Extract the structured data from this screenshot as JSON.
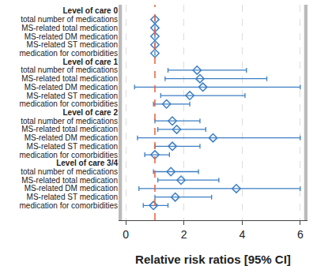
{
  "chart_data": {
    "type": "forest",
    "x_label": "Relative risk ratios [95% CI]",
    "xlim": [
      -0.25,
      6.25
    ],
    "xticks": [
      0,
      2,
      4,
      6
    ],
    "reference_line": 1,
    "color": "#3d7fc4",
    "marker": "diamond-open",
    "grid": true,
    "groups": [
      {
        "label": "Level of care 0",
        "items": [
          {
            "name": "total number of medications",
            "value": 1,
            "ci_lower": null,
            "ci_upper": null
          },
          {
            "name": "MS-related total medication",
            "value": 1,
            "ci_lower": null,
            "ci_upper": null
          },
          {
            "name": "MS-related DM medication",
            "value": 1,
            "ci_lower": null,
            "ci_upper": null
          },
          {
            "name": "MS-related ST medication",
            "value": 1,
            "ci_lower": null,
            "ci_upper": null
          },
          {
            "name": "medication for comorbidities",
            "value": 1,
            "ci_lower": null,
            "ci_upper": null
          }
        ]
      },
      {
        "label": "Level of care 1",
        "items": [
          {
            "name": "total number of medications",
            "value": 2.45,
            "ci_lower": 1.45,
            "ci_upper": 4.15
          },
          {
            "name": "MS-related total medication",
            "value": 2.55,
            "ci_lower": 1.35,
            "ci_upper": 4.85
          },
          {
            "name": "MS-related DM medication",
            "value": 2.65,
            "ci_lower": 0.3,
            "ci_upper": 6
          },
          {
            "name": "MS-related ST medication",
            "value": 2.2,
            "ci_lower": 1.2,
            "ci_upper": 4.1
          },
          {
            "name": "medication for comorbidities",
            "value": 1.4,
            "ci_lower": 0.95,
            "ci_upper": 2.2
          }
        ]
      },
      {
        "label": "Level of care 2",
        "items": [
          {
            "name": "total number of medications",
            "value": 1.6,
            "ci_lower": 1.0,
            "ci_upper": 2.55
          },
          {
            "name": "MS-related total medication",
            "value": 1.75,
            "ci_lower": 1.1,
            "ci_upper": 2.75
          },
          {
            "name": "MS-related DM medication",
            "value": 3.0,
            "ci_lower": 0.4,
            "ci_upper": 6
          },
          {
            "name": "MS-related ST medication",
            "value": 1.6,
            "ci_lower": 1.0,
            "ci_upper": 2.55
          },
          {
            "name": "medication for comorbidities",
            "value": 1.0,
            "ci_lower": 0.65,
            "ci_upper": 1.5
          }
        ]
      },
      {
        "label": "Level of care 3/4",
        "items": [
          {
            "name": "total number of medications",
            "value": 1.55,
            "ci_lower": 0.95,
            "ci_upper": 2.5
          },
          {
            "name": "MS-related total medication",
            "value": 1.9,
            "ci_lower": 1.1,
            "ci_upper": 3.2
          },
          {
            "name": "MS-related DM medication",
            "value": 3.8,
            "ci_lower": 0.45,
            "ci_upper": 6
          },
          {
            "name": "MS-related ST medication",
            "value": 1.7,
            "ci_lower": 1.0,
            "ci_upper": 2.95
          },
          {
            "name": "medication for comorbidities",
            "value": 0.95,
            "ci_lower": 0.6,
            "ci_upper": 1.45
          }
        ]
      }
    ]
  }
}
